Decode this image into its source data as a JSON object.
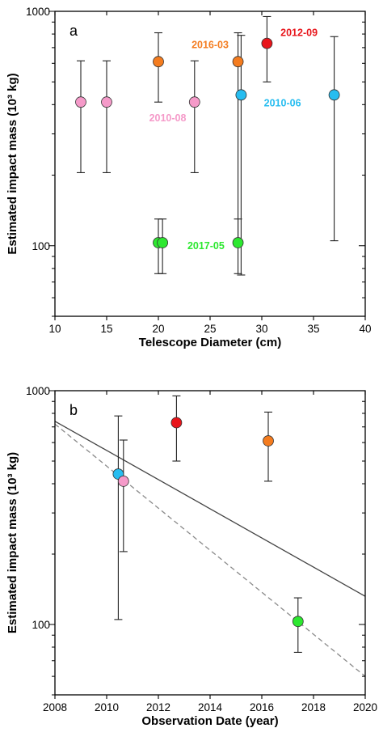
{
  "colors": {
    "2010-08": "#f59ac9",
    "2016-03": "#f47c1f",
    "2012-09": "#e8151b",
    "2010-06": "#27bdf0",
    "2017-05": "#2de830",
    "axis": "#000000",
    "fit_solid": "#444444",
    "fit_dashed": "#8a8a8a"
  },
  "chart_data": [
    {
      "type": "scatter",
      "panel_label": "a",
      "xlabel": "Telescope Diameter (cm)",
      "ylabel": "Estimated impact mass (10³ kg)",
      "xlim": [
        10,
        40
      ],
      "ylim": [
        50,
        1000
      ],
      "yscale": "log",
      "xticks": [
        10,
        15,
        20,
        25,
        30,
        35,
        40
      ],
      "yticks": [
        100,
        1000
      ],
      "points": [
        {
          "event": "2010-08",
          "x": 12.5,
          "y": 410,
          "ylow": 205,
          "yhigh": 615
        },
        {
          "event": "2010-08",
          "x": 15.0,
          "y": 410,
          "ylow": 205,
          "yhigh": 615
        },
        {
          "event": "2010-08",
          "x": 23.5,
          "y": 410,
          "ylow": 205,
          "yhigh": 615
        },
        {
          "event": "2016-03",
          "x": 20.0,
          "y": 610,
          "ylow": 410,
          "yhigh": 810
        },
        {
          "event": "2016-03",
          "x": 27.7,
          "y": 610,
          "ylow": 100,
          "yhigh": 810
        },
        {
          "event": "2012-09",
          "x": 30.5,
          "y": 730,
          "ylow": 500,
          "yhigh": 950
        },
        {
          "event": "2010-06",
          "x": 28.0,
          "y": 440,
          "ylow": 75,
          "yhigh": 790
        },
        {
          "event": "2010-06",
          "x": 37.0,
          "y": 440,
          "ylow": 105,
          "yhigh": 780
        },
        {
          "event": "2017-05",
          "x": 20.0,
          "y": 103,
          "ylow": 76,
          "yhigh": 130
        },
        {
          "event": "2017-05",
          "x": 20.4,
          "y": 103,
          "ylow": 76,
          "yhigh": 130
        },
        {
          "event": "2017-05",
          "x": 27.7,
          "y": 103,
          "ylow": 76,
          "yhigh": 130
        }
      ],
      "annotations": [
        {
          "text": "2010-08",
          "event": "2010-08",
          "x": 20.9,
          "y": 350
        },
        {
          "text": "2016-03",
          "event": "2016-03",
          "x": 25.0,
          "y": 720
        },
        {
          "text": "2012-09",
          "event": "2012-09",
          "x": 33.6,
          "y": 810
        },
        {
          "text": "2010-06",
          "event": "2010-06",
          "x": 32.0,
          "y": 405
        },
        {
          "text": "2017-05",
          "event": "2017-05",
          "x": 24.6,
          "y": 100
        }
      ]
    },
    {
      "type": "scatter",
      "panel_label": "b",
      "xlabel": "Observation Date (year)",
      "ylabel": "Estimated impact mass (10³ kg)",
      "xlim": [
        2008,
        2020
      ],
      "ylim": [
        50,
        1000
      ],
      "yscale": "log",
      "xticks": [
        2008,
        2010,
        2012,
        2014,
        2016,
        2018,
        2020
      ],
      "yticks": [
        100,
        1000
      ],
      "points": [
        {
          "event": "2010-06",
          "x": 2010.45,
          "y": 440,
          "ylow": 105,
          "yhigh": 780
        },
        {
          "event": "2010-08",
          "x": 2010.65,
          "y": 410,
          "ylow": 205,
          "yhigh": 615
        },
        {
          "event": "2012-09",
          "x": 2012.7,
          "y": 730,
          "ylow": 500,
          "yhigh": 950
        },
        {
          "event": "2016-03",
          "x": 2016.25,
          "y": 610,
          "ylow": 410,
          "yhigh": 810
        },
        {
          "event": "2017-05",
          "x": 2017.4,
          "y": 103,
          "ylow": 76,
          "yhigh": 130
        }
      ],
      "fit_lines": [
        {
          "style": "solid",
          "x": [
            2008,
            2020
          ],
          "y": [
            740,
            132
          ]
        },
        {
          "style": "dashed",
          "x": [
            2008,
            2020
          ],
          "y": [
            720,
            60
          ]
        }
      ]
    }
  ]
}
